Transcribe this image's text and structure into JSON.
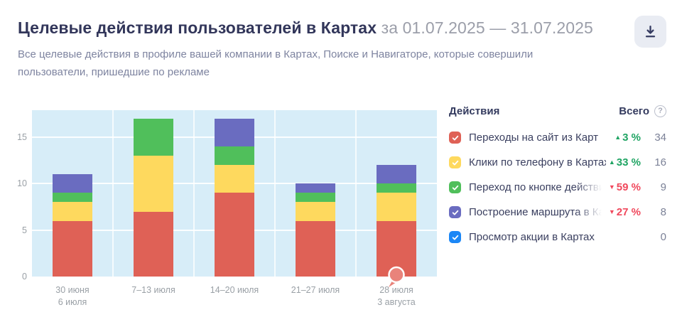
{
  "header": {
    "title": "Целевые действия пользователей в Картах",
    "period": "за 01.07.2025 — 31.07.2025",
    "subtitle": "Все целевые действия в профиле вашей компании в Картах, Поиске и Навигаторе, которые совершили пользователи, пришедшие по рекламе"
  },
  "chart_data": {
    "type": "bar",
    "stacked": true,
    "categories": [
      [
        "30 июня",
        "6 июля"
      ],
      [
        "7–13 июля"
      ],
      [
        "14–20 июля"
      ],
      [
        "21–27 июля"
      ],
      [
        "28 июля",
        "3 августа"
      ]
    ],
    "series": [
      {
        "name": "Переходы на сайт из Карт",
        "color": "#df6156",
        "values": [
          6,
          7,
          9,
          6,
          6
        ]
      },
      {
        "name": "Клики по телефону в Картах",
        "color": "#fed95e",
        "values": [
          2,
          6,
          3,
          2,
          3
        ]
      },
      {
        "name": "Переход по кнопке действия из Карт",
        "color": "#50bf5b",
        "values": [
          1,
          4,
          2,
          1,
          1
        ]
      },
      {
        "name": "Построение маршрута в Картах",
        "color": "#6a6cc0",
        "values": [
          2,
          0,
          3,
          1,
          2
        ]
      },
      {
        "name": "Просмотр акции в Картах",
        "color": "#1b87f6",
        "values": [
          0,
          0,
          0,
          0,
          0
        ]
      }
    ],
    "y_ticks": [
      0,
      5,
      10,
      15
    ],
    "ylim": [
      0,
      17.9
    ],
    "plot_bg": "#d7edf8",
    "grid_color": "#ffffff",
    "grid": true,
    "legend_position": "right",
    "annotation_marker": {
      "category_index": 4,
      "at": "baseline",
      "color": "#e9837b"
    }
  },
  "legend": {
    "col_actions": "Действия",
    "col_total": "Всего",
    "help_icon": "?",
    "trend_up_color": "#1fa463",
    "trend_down_color": "#f0485c",
    "rows": [
      {
        "label": "Переходы на сайт из Карт",
        "color": "#df6156",
        "checked": true,
        "fade": false,
        "trend_dir": "up",
        "trend": "3 %",
        "total": "34"
      },
      {
        "label": "Клики по телефону в Картах",
        "color": "#fed95e",
        "checked": true,
        "fade": false,
        "trend_dir": "up",
        "trend": "33 %",
        "total": "16"
      },
      {
        "label": "Переход по кнопке действия из Карт",
        "color": "#50bf5b",
        "checked": true,
        "fade": true,
        "trend_dir": "down",
        "trend": "59 %",
        "total": "9"
      },
      {
        "label": "Построение маршрута в Картах",
        "color": "#6a6cc0",
        "checked": true,
        "fade": true,
        "trend_dir": "down",
        "trend": "27 %",
        "total": "8"
      },
      {
        "label": "Просмотр акции в Картах",
        "color": "#1b87f6",
        "checked": true,
        "fade": false,
        "trend_dir": "none",
        "trend": "",
        "total": "0"
      }
    ]
  }
}
